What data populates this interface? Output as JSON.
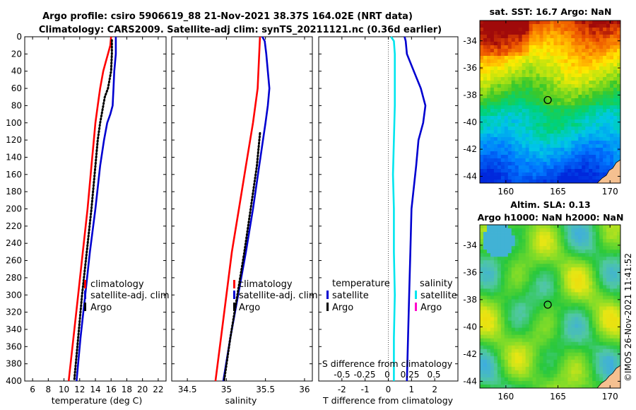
{
  "titles": {
    "line1": "Argo profile: csiro 5906619_88 21-Nov-2021 38.37S 164.02E (NRT data)",
    "line2": "Climatology: CARS2009. Satellite-adj clim: synTS_20211121.nc (0.36d earlier)"
  },
  "colors": {
    "climatology": "#ff0000",
    "satellite": "#0000d0",
    "argo": "#000000",
    "sal_satellite": "#00e5ee",
    "sal_argo": "#ff00cc"
  },
  "chart_data": [
    {
      "id": "temp",
      "type": "line",
      "xlabel": "temperature (deg C)",
      "xlim": [
        5,
        23
      ],
      "xticks": [
        6,
        8,
        10,
        12,
        14,
        16,
        18,
        20,
        22
      ],
      "xtick_labels": [
        "6",
        "8",
        "10",
        "12",
        "14",
        "16",
        "18",
        "20",
        "22"
      ],
      "ylim": [
        0,
        400
      ],
      "yticks": [
        0,
        20,
        40,
        60,
        80,
        100,
        120,
        140,
        160,
        180,
        200,
        220,
        240,
        260,
        280,
        300,
        320,
        340,
        360,
        380,
        400
      ],
      "y_reversed": true,
      "legend": [
        "climatology",
        "satellite-adj. clim",
        "Argo"
      ],
      "series": [
        {
          "name": "climatology",
          "color": "#ff0000",
          "style": "solid",
          "depth": [
            0,
            10,
            20,
            30,
            40,
            60,
            80,
            100,
            120,
            150,
            200,
            250,
            300,
            350,
            400
          ],
          "values": [
            16.0,
            15.9,
            15.6,
            15.3,
            15.0,
            14.6,
            14.3,
            14.0,
            13.8,
            13.5,
            13.0,
            12.4,
            11.8,
            11.2,
            10.6
          ]
        },
        {
          "name": "satellite-adj. clim",
          "color": "#0000d0",
          "style": "solid",
          "depth": [
            0,
            10,
            20,
            30,
            40,
            60,
            80,
            90,
            100,
            120,
            150,
            200,
            250,
            300,
            350,
            400
          ],
          "values": [
            16.6,
            16.6,
            16.6,
            16.5,
            16.4,
            16.3,
            16.2,
            15.9,
            15.5,
            15.1,
            14.6,
            14.0,
            13.3,
            12.7,
            12.1,
            11.6
          ]
        },
        {
          "name": "Argo",
          "color": "#000000",
          "style": "dotted",
          "depth": [
            4,
            20,
            40,
            60,
            70,
            80,
            100,
            120,
            150,
            200,
            250,
            300,
            350,
            400
          ],
          "values": [
            16.1,
            16.1,
            16.0,
            15.6,
            15.2,
            15.0,
            14.6,
            14.3,
            14.0,
            13.5,
            12.9,
            12.3,
            11.8,
            11.3
          ]
        }
      ]
    },
    {
      "id": "salinity",
      "type": "line",
      "xlabel": "salinity",
      "xlim": [
        34.3,
        36.1
      ],
      "xticks": [
        34.5,
        35,
        35.5,
        36
      ],
      "xtick_labels": [
        "34.5",
        "35",
        "35.5",
        "36"
      ],
      "ylim": [
        0,
        400
      ],
      "y_reversed": true,
      "legend": [
        "climatology",
        "satellite-adj. clim",
        "Argo"
      ],
      "series": [
        {
          "name": "climatology",
          "color": "#ff0000",
          "style": "solid",
          "depth": [
            0,
            20,
            40,
            60,
            80,
            100,
            150,
            200,
            250,
            300,
            350,
            400
          ],
          "values": [
            35.43,
            35.42,
            35.41,
            35.4,
            35.37,
            35.34,
            35.25,
            35.16,
            35.07,
            35.0,
            34.93,
            34.86
          ]
        },
        {
          "name": "satellite-adj. clim",
          "color": "#0000d0",
          "style": "solid",
          "depth": [
            0,
            5,
            20,
            40,
            60,
            80,
            100,
            150,
            200,
            250,
            300,
            350,
            400
          ],
          "values": [
            35.46,
            35.49,
            35.51,
            35.53,
            35.55,
            35.53,
            35.5,
            35.42,
            35.34,
            35.25,
            35.15,
            35.05,
            34.96
          ]
        },
        {
          "name": "Argo",
          "color": "#000000",
          "style": "dotted",
          "depth": [
            112,
            150,
            200,
            250,
            300,
            350,
            400
          ],
          "values": [
            35.43,
            35.39,
            35.31,
            35.23,
            35.14,
            35.05,
            34.97
          ]
        }
      ]
    },
    {
      "id": "difference",
      "type": "line",
      "xlabel": "T difference from climatology",
      "xlim": [
        -3,
        3
      ],
      "xticks": [
        -2,
        -1,
        0,
        1,
        2
      ],
      "xtick_labels": [
        "-2",
        "-1",
        "0",
        "1",
        "2"
      ],
      "top_label": "S difference from climatology",
      "top_ticks": [
        "-0.5",
        "-0.25",
        "0",
        "0.25",
        "0.5"
      ],
      "ylim": [
        0,
        400
      ],
      "y_reversed": true,
      "legend_left_header": "temperature",
      "legend_left": [
        "satellite",
        "Argo"
      ],
      "legend_right_header": "salinity",
      "legend_right": [
        "satellite",
        "Argo"
      ],
      "series": [
        {
          "name": "temperature satellite",
          "color": "#0000d0",
          "style": "solid",
          "depth": [
            0,
            5,
            20,
            40,
            60,
            80,
            100,
            120,
            150,
            200,
            250,
            300,
            350,
            400
          ],
          "values": [
            0.7,
            0.75,
            0.8,
            1.1,
            1.4,
            1.6,
            1.5,
            1.3,
            1.2,
            1.0,
            0.95,
            0.9,
            0.85,
            0.8
          ]
        },
        {
          "name": "salinity satellite",
          "color": "#00e5ee",
          "style": "solid",
          "depth": [
            0,
            5,
            20,
            40,
            80,
            120,
            160,
            200,
            250,
            300,
            350,
            400
          ],
          "values": [
            0.03,
            0.06,
            0.07,
            0.07,
            0.07,
            0.06,
            0.05,
            0.06,
            0.06,
            0.07,
            0.06,
            0.06
          ],
          "scale_note": "salinity differences on top axis"
        }
      ]
    },
    {
      "id": "sst_map",
      "type": "heatmap",
      "title": "sat. SST: 16.7 Argo: NaN",
      "xticks": [
        "160",
        "165",
        "170"
      ],
      "yticks": [
        "-34",
        "-36",
        "-38",
        "-40",
        "-42",
        "-44"
      ],
      "xlim": [
        157.5,
        171
      ],
      "ylim": [
        -44.5,
        -32.5
      ],
      "marker": {
        "lon": 164.02,
        "lat": -38.37
      }
    },
    {
      "id": "sla_map",
      "type": "heatmap",
      "title_line1": "Altim. SLA: 0.13",
      "title_line2": "Argo h1000: NaN h2000: NaN",
      "xticks": [
        "160",
        "165",
        "170"
      ],
      "yticks": [
        "-34",
        "-36",
        "-38",
        "-40",
        "-42",
        "-44"
      ],
      "xlim": [
        157.5,
        171
      ],
      "ylim": [
        -44.5,
        -32.5
      ],
      "marker": {
        "lon": 164.02,
        "lat": -38.37
      }
    }
  ],
  "watermark": "©IMOS 26-Nov-2021 11:41:52"
}
